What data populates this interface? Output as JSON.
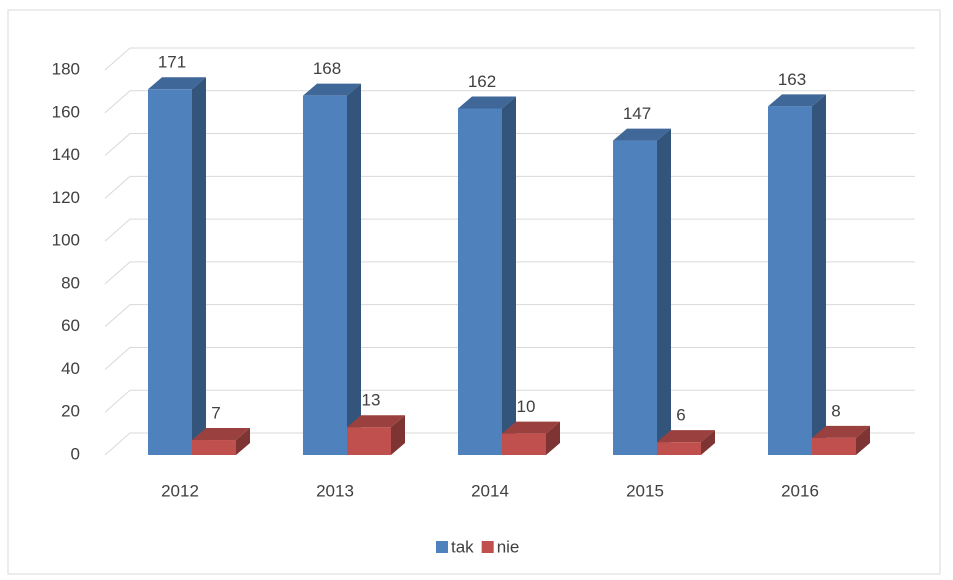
{
  "chart_data": {
    "type": "bar3d",
    "categories": [
      "2012",
      "2013",
      "2014",
      "2015",
      "2016"
    ],
    "series": [
      {
        "name": "tak",
        "color": "#4f81bd",
        "values": [
          171,
          168,
          162,
          147,
          163
        ]
      },
      {
        "name": "nie",
        "color": "#c0504d",
        "values": [
          7,
          13,
          10,
          6,
          8
        ]
      }
    ],
    "ylim": [
      0,
      180
    ],
    "yticks": [
      0,
      20,
      40,
      60,
      80,
      100,
      120,
      140,
      160,
      180
    ],
    "grid": true,
    "legend": "bottom"
  }
}
